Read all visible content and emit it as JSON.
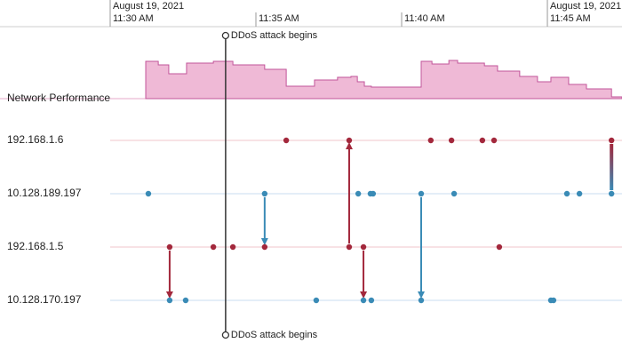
{
  "chart_data": {
    "type": "timeline",
    "date_labels": [
      {
        "text": "August 19, 2021",
        "x": 30
      },
      {
        "text": "August 19, 2021",
        "x": 45
      }
    ],
    "xlim": [
      30,
      47.56
    ],
    "xticks": [
      {
        "value": 30,
        "label": "11:30 AM"
      },
      {
        "value": 35,
        "label": "11:35 AM"
      },
      {
        "value": 40,
        "label": "11:40 AM"
      },
      {
        "value": 45,
        "label": "11:45 AM"
      }
    ],
    "performance": {
      "label": "Network Performance",
      "color": "#efb9d6",
      "line_color": "#c2559a",
      "ylim": [
        0,
        100
      ],
      "x": [
        31.22,
        31.65,
        32.01,
        32.62,
        33.54,
        34.21,
        35.3,
        36.04,
        37.01,
        37.8,
        38.26,
        38.48,
        38.72,
        38.96,
        40.67,
        41.04,
        41.62,
        41.92,
        42.84,
        43.29,
        44.05,
        44.66,
        45.12,
        45.73,
        46.34,
        47.2
      ],
      "values": [
        84,
        76,
        56,
        80,
        84,
        76,
        66,
        28,
        42,
        48,
        50,
        38,
        28,
        26,
        84,
        78,
        86,
        80,
        74,
        62,
        50,
        38,
        48,
        32,
        22,
        4
      ]
    },
    "rows": [
      {
        "name": "192.168.1.6",
        "color": "#a3283c",
        "line_color": "#f2c4cb",
        "events": [
          36.04,
          38.2,
          41.0,
          41.71,
          42.77,
          43.17,
          47.2
        ]
      },
      {
        "name": "10.128.189.197",
        "color": "#3a8bb6",
        "line_color": "#c9ddf1",
        "events": [
          31.31,
          35.3,
          38.51,
          38.93,
          39.02,
          40.67,
          41.8,
          45.67,
          46.1,
          47.2
        ]
      },
      {
        "name": "192.168.1.5",
        "color": "#a3283c",
        "line_color": "#f2c4cb",
        "events": [
          32.04,
          33.54,
          34.21,
          35.3,
          38.2,
          38.69,
          43.35
        ]
      },
      {
        "name": "10.128.170.197",
        "color": "#3a8bb6",
        "line_color": "#c9ddf1",
        "events": [
          32.04,
          32.59,
          37.07,
          38.69,
          38.96,
          40.67,
          45.12,
          45.21
        ]
      }
    ],
    "links": [
      {
        "x": 32.04,
        "from": 2,
        "to": 3,
        "arrow": true
      },
      {
        "x": 35.3,
        "from": 1,
        "to": 2,
        "arrow": true
      },
      {
        "x": 38.2,
        "from": 2,
        "to": 0,
        "arrow": true
      },
      {
        "x": 38.69,
        "from": 2,
        "to": 3,
        "arrow": true
      },
      {
        "x": 40.67,
        "from": 1,
        "to": 3,
        "arrow": true
      },
      {
        "x": 47.2,
        "from": 0,
        "to": 1,
        "arrow": false
      }
    ],
    "annotation": {
      "text": "DDoS attack begins",
      "x": 33.96
    }
  }
}
